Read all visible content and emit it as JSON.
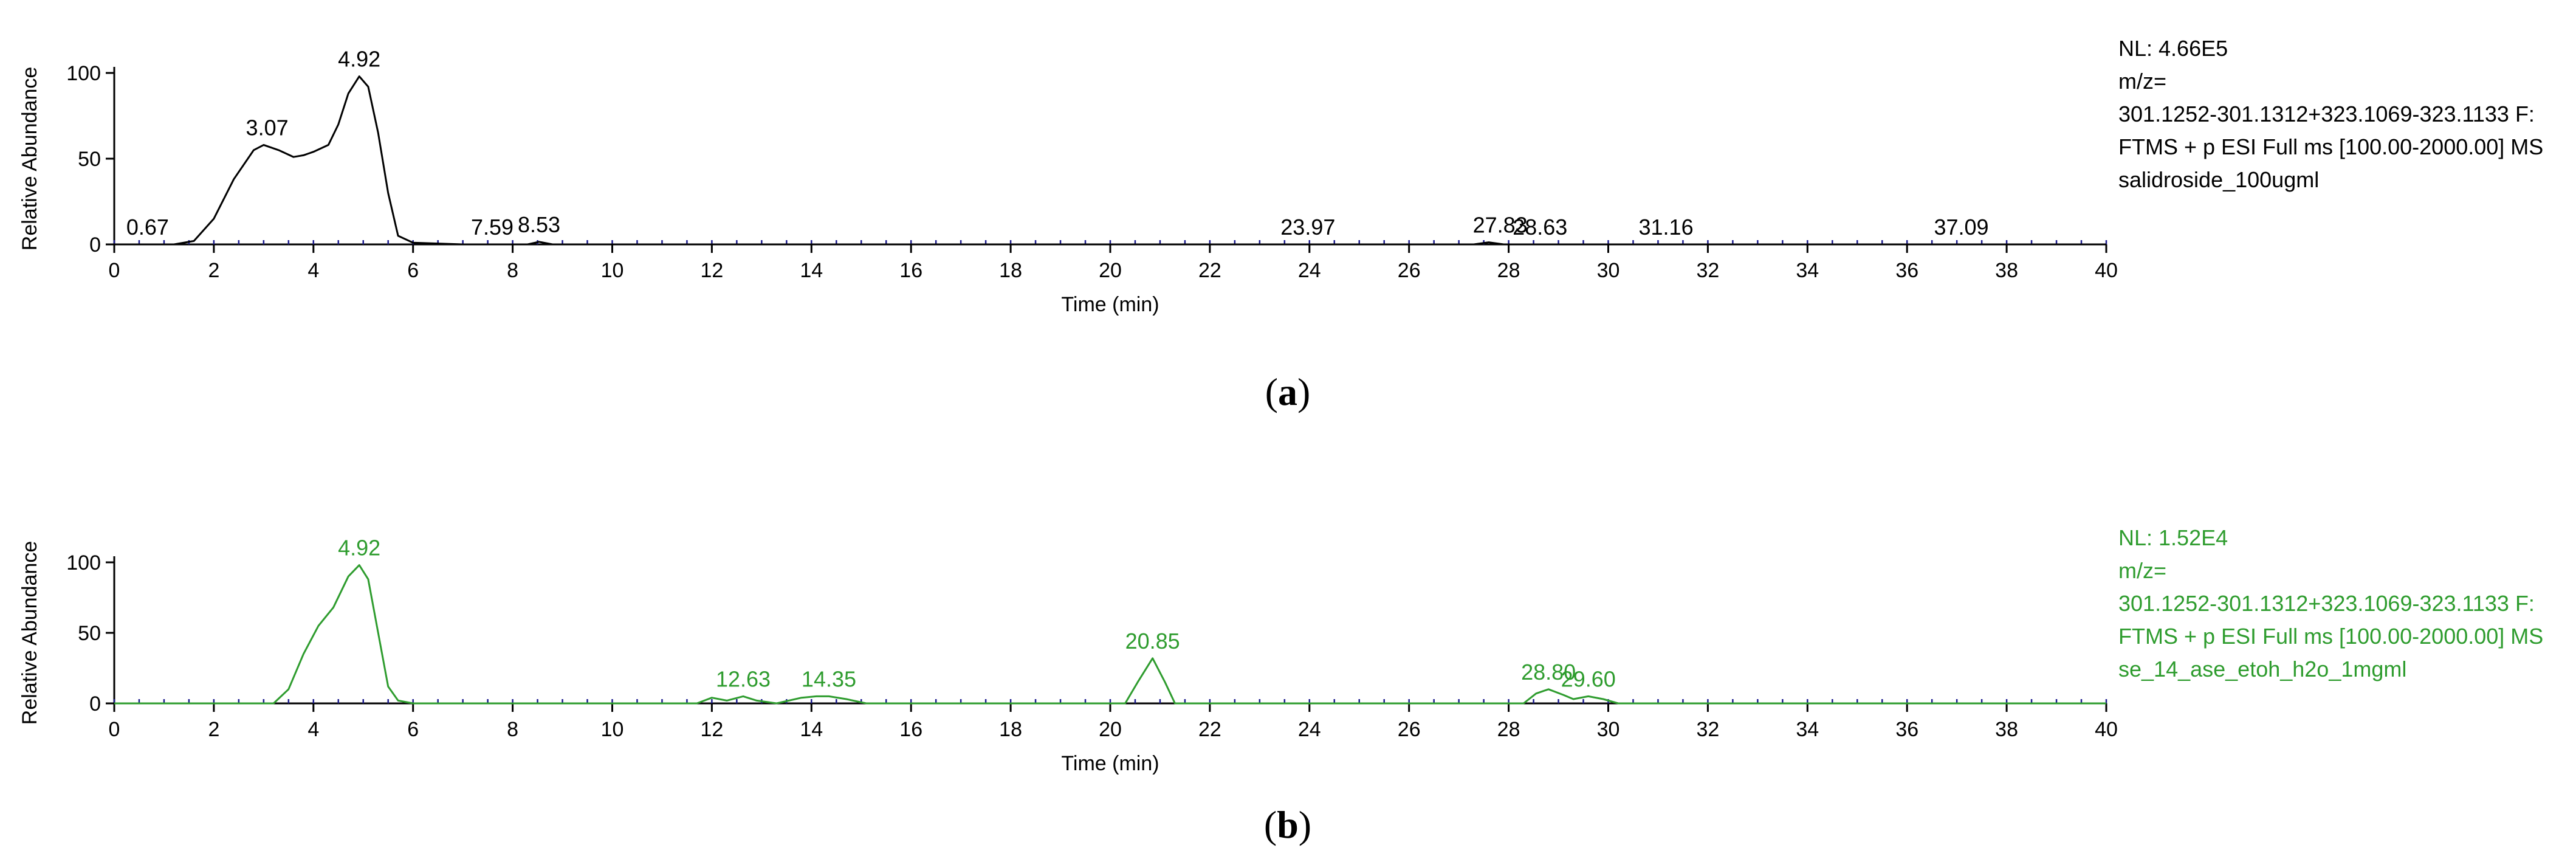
{
  "chart_data": [
    {
      "type": "line",
      "panel": "a",
      "caption_letter": "a",
      "xlabel": "Time (min)",
      "ylabel": "Relative Abundance",
      "xlim": [
        0,
        40
      ],
      "ylim": [
        0,
        100
      ],
      "x_ticks": [
        0,
        2,
        4,
        6,
        8,
        10,
        12,
        14,
        16,
        18,
        20,
        22,
        24,
        26,
        28,
        30,
        32,
        34,
        36,
        38,
        40
      ],
      "y_ticks": [
        0,
        50,
        100
      ],
      "trace_color": "#000000",
      "series": [
        {
          "x": [
            0,
            1.2,
            1.6,
            2.0,
            2.4,
            2.8,
            3.0,
            3.3,
            3.6,
            3.8,
            4.0,
            4.3,
            4.5,
            4.7,
            4.92,
            5.1,
            5.3,
            5.5,
            5.7,
            6.0,
            7.0,
            8.3,
            8.53,
            8.8,
            10,
            20,
            27.3,
            27.6,
            27.9,
            30,
            40
          ],
          "y": [
            0,
            0,
            2,
            15,
            38,
            55,
            58,
            55,
            51,
            52,
            54,
            58,
            70,
            88,
            98,
            92,
            65,
            30,
            5,
            1,
            0,
            0,
            1.5,
            0,
            0,
            0,
            0,
            1.2,
            0,
            0,
            0
          ]
        }
      ],
      "peak_labels": [
        {
          "x": 0.67,
          "y": 0,
          "text": "0.67"
        },
        {
          "x": 3.07,
          "y": 58,
          "text": "3.07"
        },
        {
          "x": 4.92,
          "y": 98,
          "text": "4.92"
        },
        {
          "x": 7.59,
          "y": 0,
          "text": "7.59"
        },
        {
          "x": 8.53,
          "y": 1.5,
          "text": "8.53"
        },
        {
          "x": 23.97,
          "y": 0,
          "text": "23.97"
        },
        {
          "x": 27.83,
          "y": 1.2,
          "text": "27.83"
        },
        {
          "x": 28.63,
          "y": 0,
          "text": "28.63"
        },
        {
          "x": 31.16,
          "y": 0,
          "text": "31.16"
        },
        {
          "x": 37.09,
          "y": 0,
          "text": "37.09"
        }
      ],
      "info": {
        "lines": [
          "NL: 4.66E5",
          "m/z=",
          "301.1252-301.1312+323.1069-323.1133 F:",
          "FTMS + p ESI Full ms [100.00-2000.00]  MS",
          "salidroside_100ugml"
        ]
      }
    },
    {
      "type": "line",
      "panel": "b",
      "caption_letter": "b",
      "xlabel": "Time (min)",
      "ylabel": "Relative Abundance",
      "xlim": [
        0,
        40
      ],
      "ylim": [
        0,
        100
      ],
      "x_ticks": [
        0,
        2,
        4,
        6,
        8,
        10,
        12,
        14,
        16,
        18,
        20,
        22,
        24,
        26,
        28,
        30,
        32,
        34,
        36,
        38,
        40
      ],
      "y_ticks": [
        0,
        50,
        100
      ],
      "trace_color": "#2e9c2e",
      "series": [
        {
          "x": [
            0,
            3.2,
            3.5,
            3.8,
            4.1,
            4.4,
            4.7,
            4.92,
            5.1,
            5.3,
            5.5,
            5.7,
            6.0,
            11.7,
            12.0,
            12.3,
            12.63,
            12.9,
            13.3,
            13.8,
            14.1,
            14.35,
            14.7,
            15.1,
            20.3,
            20.55,
            20.85,
            21.1,
            21.3,
            24,
            28.3,
            28.55,
            28.8,
            29.1,
            29.3,
            29.6,
            29.9,
            30.2,
            40
          ],
          "y": [
            0,
            0,
            10,
            35,
            55,
            68,
            90,
            98,
            88,
            50,
            12,
            2,
            0,
            0,
            4,
            2,
            5,
            2,
            0,
            4,
            5,
            5,
            3,
            0,
            0,
            15,
            32,
            15,
            0,
            0,
            0,
            7,
            10,
            6,
            3,
            5,
            3,
            0,
            0
          ]
        }
      ],
      "peak_labels": [
        {
          "x": 4.92,
          "y": 98,
          "text": "4.92"
        },
        {
          "x": 12.63,
          "y": 5,
          "text": "12.63"
        },
        {
          "x": 14.35,
          "y": 5,
          "text": "14.35"
        },
        {
          "x": 20.85,
          "y": 32,
          "text": "20.85"
        },
        {
          "x": 28.8,
          "y": 10,
          "text": "28.80"
        },
        {
          "x": 29.6,
          "y": 5,
          "text": "29.60"
        }
      ],
      "info": {
        "lines": [
          "NL: 1.52E4",
          "m/z=",
          "301.1252-301.1312+323.1069-323.1133 F:",
          "FTMS + p ESI Full ms [100.00-2000.00]  MS",
          "se_14_ase_etoh_h2o_1mgml"
        ]
      }
    }
  ]
}
